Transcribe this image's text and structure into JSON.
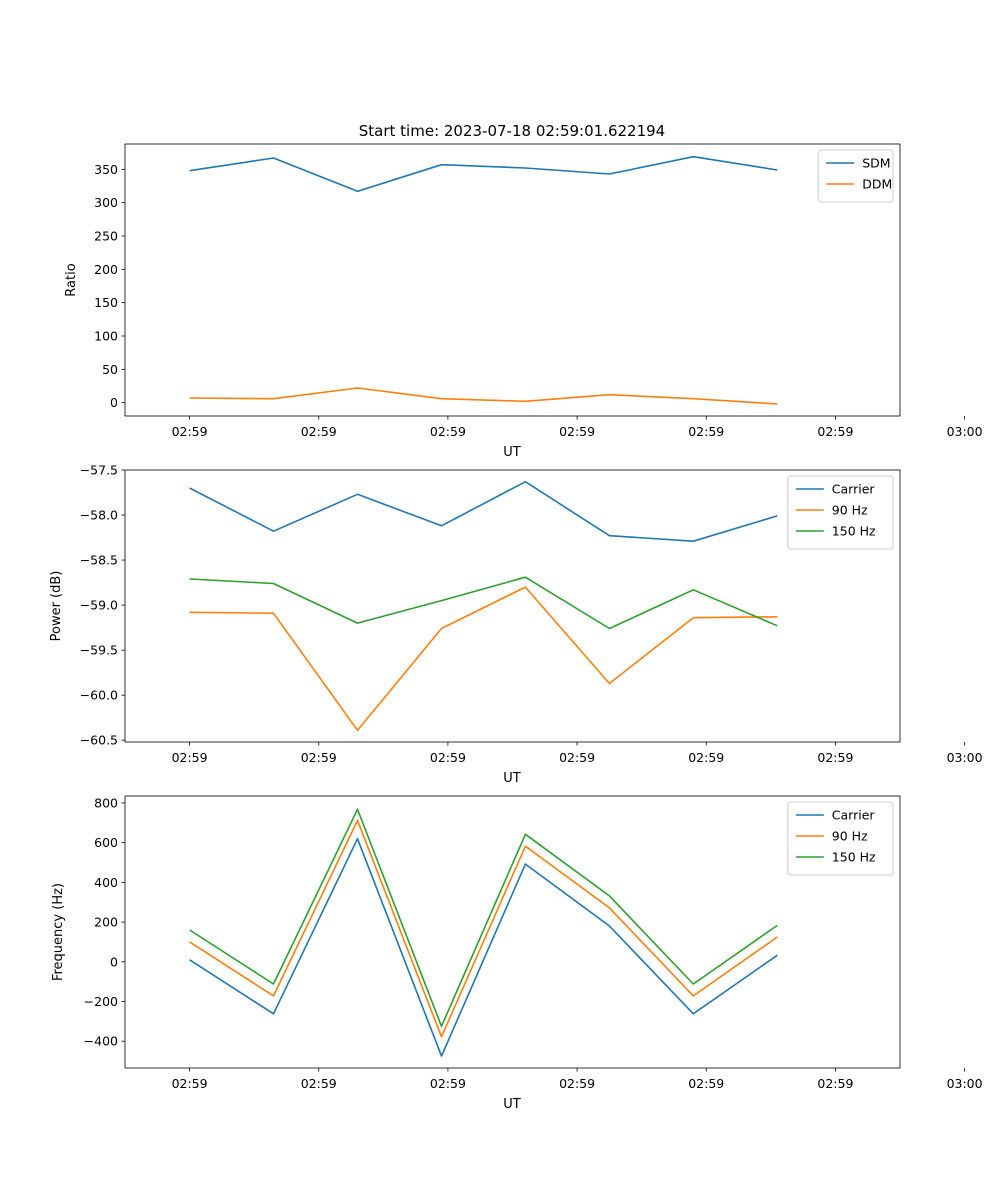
{
  "figure_title": "Start time: 2023-07-18 02:59:01.622194",
  "chart_data": [
    {
      "type": "line",
      "ylabel": "Ratio",
      "xlabel": "UT",
      "ylim": [
        -20,
        388
      ],
      "xlim": [
        -0.5,
        5.5
      ],
      "yticks": [
        0,
        50,
        100,
        150,
        200,
        250,
        300,
        350
      ],
      "xticks": [
        0,
        1,
        2,
        3,
        4,
        5,
        6
      ],
      "xtick_labels": [
        "02:59",
        "02:59",
        "02:59",
        "02:59",
        "02:59",
        "02:59",
        "03:00"
      ],
      "x": [
        0,
        0.65,
        1.3,
        1.95,
        2.6,
        3.25,
        3.9,
        4.55
      ],
      "legend": "top-right",
      "series": [
        {
          "name": "SDM",
          "color": "#1f77b4",
          "values": [
            348,
            367,
            317,
            357,
            352,
            343,
            369,
            349
          ]
        },
        {
          "name": "DDM",
          "color": "#ff7f0e",
          "values": [
            7,
            6,
            22,
            6,
            2,
            12,
            6,
            -2
          ]
        }
      ]
    },
    {
      "type": "line",
      "ylabel": "Power (dB)",
      "xlabel": "UT",
      "ylim": [
        -60.52,
        -57.5
      ],
      "xlim": [
        -0.5,
        5.5
      ],
      "yticks": [
        -60.5,
        -60.0,
        -59.5,
        -59.0,
        -58.5,
        -58.0,
        -57.5
      ],
      "xticks": [
        0,
        1,
        2,
        3,
        4,
        5,
        6
      ],
      "xtick_labels": [
        "02:59",
        "02:59",
        "02:59",
        "02:59",
        "02:59",
        "02:59",
        "03:00"
      ],
      "x": [
        0,
        0.65,
        1.3,
        1.95,
        2.6,
        3.25,
        3.9,
        4.55
      ],
      "legend": "top-right",
      "series": [
        {
          "name": "Carrier",
          "color": "#1f77b4",
          "values": [
            -57.7,
            -58.18,
            -57.77,
            -58.12,
            -57.63,
            -58.23,
            -58.29,
            -58.01
          ]
        },
        {
          "name": "90 Hz",
          "color": "#ff7f0e",
          "values": [
            -59.08,
            -59.09,
            -60.39,
            -59.26,
            -58.8,
            -59.87,
            -59.14,
            -59.13
          ]
        },
        {
          "name": "150 Hz",
          "color": "#2ca02c",
          "values": [
            -58.71,
            -58.76,
            -59.2,
            -58.95,
            -58.69,
            -59.26,
            -58.83,
            -59.23
          ]
        }
      ]
    },
    {
      "type": "line",
      "ylabel": "Frequency (Hz)",
      "xlabel": "UT",
      "ylim": [
        -535,
        835
      ],
      "xlim": [
        -0.5,
        5.5
      ],
      "yticks": [
        -400,
        -200,
        0,
        200,
        400,
        600,
        800
      ],
      "xticks": [
        0,
        1,
        2,
        3,
        4,
        5,
        6
      ],
      "xtick_labels": [
        "02:59",
        "02:59",
        "02:59",
        "02:59",
        "02:59",
        "02:59",
        "03:00"
      ],
      "x": [
        0,
        0.65,
        1.3,
        1.95,
        2.6,
        3.25,
        3.9,
        4.55
      ],
      "legend": "top-right",
      "series": [
        {
          "name": "Carrier",
          "color": "#1f77b4",
          "values": [
            10,
            -262,
            620,
            -475,
            492,
            180,
            -262,
            33
          ]
        },
        {
          "name": "90 Hz",
          "color": "#ff7f0e",
          "values": [
            100,
            -172,
            712,
            -378,
            582,
            272,
            -172,
            125
          ]
        },
        {
          "name": "150 Hz",
          "color": "#2ca02c",
          "values": [
            160,
            -112,
            768,
            -325,
            642,
            332,
            -112,
            183
          ]
        }
      ]
    }
  ]
}
